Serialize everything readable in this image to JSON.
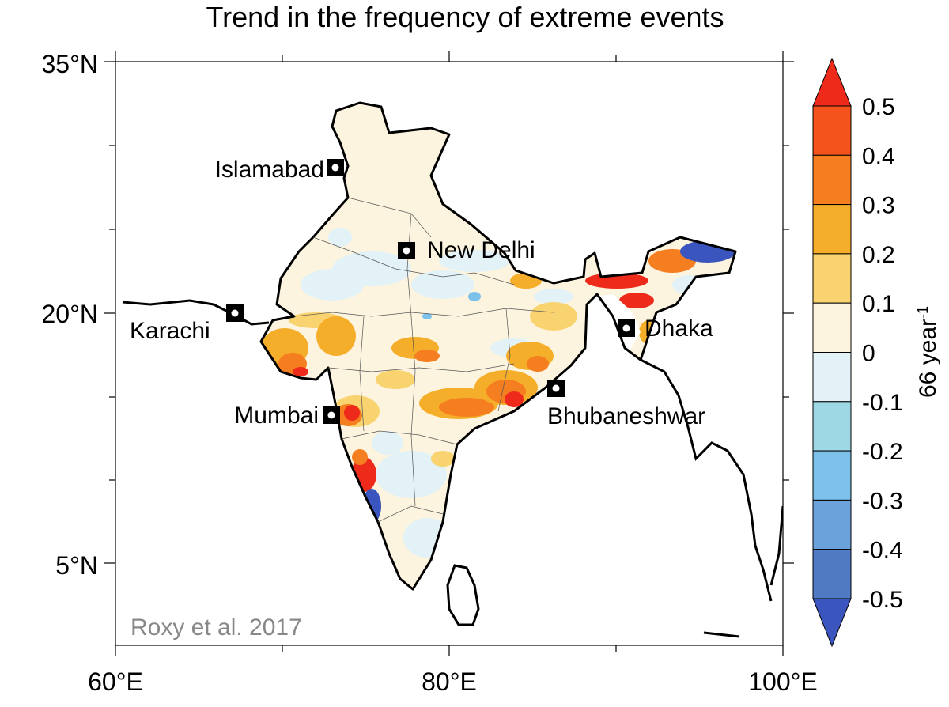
{
  "title": "Trend in the frequency of extreme events",
  "axes": {
    "lat_ticks": [
      "35°N",
      "20°N",
      "5°N"
    ],
    "lon_ticks": [
      "60°E",
      "80°E",
      "100°E"
    ]
  },
  "cities": [
    {
      "name": "Islamabad"
    },
    {
      "name": "New Delhi"
    },
    {
      "name": "Karachi"
    },
    {
      "name": "Dhaka"
    },
    {
      "name": "Mumbai"
    },
    {
      "name": "Bhubaneshwar"
    }
  ],
  "colorbar": {
    "labels": [
      "0.5",
      "0.4",
      "0.3",
      "0.2",
      "0.1",
      "0",
      "-0.1",
      "-0.2",
      "-0.3",
      "-0.4",
      "-0.5"
    ],
    "unit": "66 year",
    "unit_superscript": "-1",
    "colors": [
      "#ee2a1a",
      "#f4541b",
      "#f57e20",
      "#f5ae2a",
      "#f8d36f",
      "#fdf4df",
      "#e2f2f7",
      "#9fd8e5",
      "#7cc1ea",
      "#6ba2db",
      "#507bc3",
      "#3a55be"
    ]
  },
  "credit": "Roxy et al. 2017"
}
